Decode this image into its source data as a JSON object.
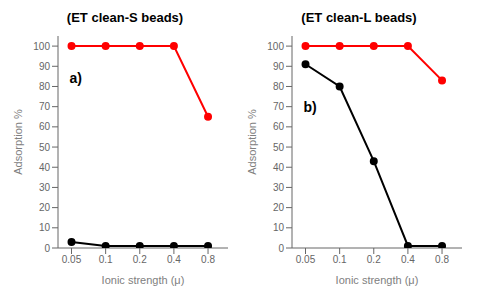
{
  "chart_data": [
    {
      "type": "line",
      "title": "(ET clean-S beads)",
      "x_label": "Ionic strength (μ)",
      "y_label": "Adsorption %",
      "x": [
        0.05,
        0.1,
        0.2,
        0.4,
        0.8
      ],
      "series": [
        {
          "color": "#ff0000",
          "marker": "circle",
          "values": [
            100,
            100,
            100,
            100,
            65
          ]
        },
        {
          "color": "#000000",
          "marker": "circle",
          "values": [
            3,
            1,
            1,
            1,
            1
          ]
        }
      ],
      "xlim": [
        0.038,
        1.2
      ],
      "ylim": [
        0,
        105
      ],
      "xticks": [
        0.05,
        0.1,
        0.2,
        0.4,
        0.8
      ],
      "yticks": [
        0,
        10,
        20,
        30,
        40,
        50,
        60,
        70,
        80,
        90,
        100
      ],
      "log": "x",
      "grid": false,
      "annotations": [
        {
          "text": "a)",
          "x": 0.048,
          "y": 84
        }
      ]
    },
    {
      "type": "line",
      "title": "(ET clean-L beads)",
      "x_label": "Ionic strength (μ)",
      "y_label": "Adsorption %",
      "x": [
        0.05,
        0.1,
        0.2,
        0.4,
        0.8
      ],
      "series": [
        {
          "color": "#ff0000",
          "marker": "circle",
          "values": [
            100,
            100,
            100,
            100,
            83
          ]
        },
        {
          "color": "#000000",
          "marker": "circle",
          "values": [
            91,
            80,
            43,
            1,
            1
          ]
        }
      ],
      "xlim": [
        0.038,
        1.2
      ],
      "ylim": [
        0,
        105
      ],
      "xticks": [
        0.05,
        0.1,
        0.2,
        0.4,
        0.8
      ],
      "yticks": [
        0,
        10,
        20,
        30,
        40,
        50,
        60,
        70,
        80,
        90,
        100
      ],
      "log": "x",
      "grid": false,
      "annotations": [
        {
          "text": "b)",
          "x": 0.048,
          "y": 70
        }
      ]
    }
  ]
}
